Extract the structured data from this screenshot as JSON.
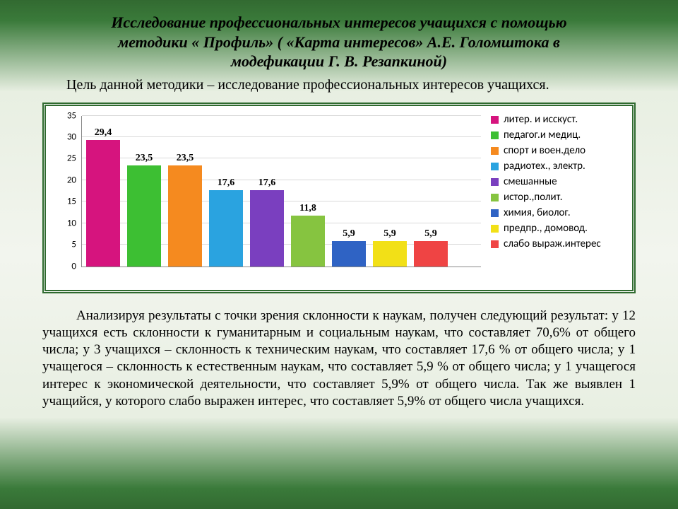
{
  "title_lines": [
    "Исследование профессиональных интересов учащихся с помощью",
    "методики « Профиль» ( «Карта интересов» А.Е. Голомштока в",
    "модефикации Г. В. Резапкиной)"
  ],
  "subtitle": "Цель   данной    методики –   исследование профессиональных интересов учащихся.",
  "chart": {
    "type": "bar",
    "ymin": 0,
    "ymax": 35,
    "ytick_step": 5,
    "grid_color": "#d9d9d9",
    "axis_color": "#888888",
    "background": "#ffffff",
    "label_fontsize": 14,
    "tick_fontsize": 13,
    "bars": [
      {
        "label": "29,4",
        "value": 29.4,
        "color": "#d6147e"
      },
      {
        "label": "23,5",
        "value": 23.5,
        "color": "#3dbf33"
      },
      {
        "label": "23,5",
        "value": 23.5,
        "color": "#f58a1f"
      },
      {
        "label": "17,6",
        "value": 17.6,
        "color": "#2aa3e0"
      },
      {
        "label": "17,6",
        "value": 17.6,
        "color": "#7a3fbf"
      },
      {
        "label": "11,8",
        "value": 11.8,
        "color": "#86c440"
      },
      {
        "label": "5,9",
        "value": 5.9,
        "color": "#2f63c4"
      },
      {
        "label": "5,9",
        "value": 5.9,
        "color": "#f2e017"
      },
      {
        "label": "5,9",
        "value": 5.9,
        "color": "#ef4444"
      }
    ],
    "legend": [
      {
        "label": "литер. и исскуст.",
        "color": "#d6147e"
      },
      {
        "label": "педагог.и медиц.",
        "color": "#3dbf33"
      },
      {
        "label": "спорт и воен.дело",
        "color": "#f58a1f"
      },
      {
        "label": "радиотех., электр.",
        "color": "#2aa3e0"
      },
      {
        "label": "смешанные",
        "color": "#7a3fbf"
      },
      {
        "label": "истор.,полит.",
        "color": "#86c440"
      },
      {
        "label": "химия, биолог.",
        "color": "#2f63c4"
      },
      {
        "label": "предпр., домовод.",
        "color": "#f2e017"
      },
      {
        "label": "слабо выраж.интерес",
        "color": "#ef4444"
      }
    ]
  },
  "body": "Анализируя результаты с точки зрения склонности к наукам, получен следующий результат:   у   12 учащихся есть склонности к гуманитарным и социальным наукам, что составляет 70,6% от общего числа; у 3  учащихся – склонность к техническим наукам, что составляет 17,6 % от общего числа; у  1 учащегося – склонность к естественным наукам, что составляет 5,9 % от общего числа; у 1 учащегося интерес к экономической деятельности, что составляет 5,9% от общего числа. Так же выявлен 1 учащийся, у которого слабо выражен интерес, что составляет 5,9% от общего числа учащихся."
}
